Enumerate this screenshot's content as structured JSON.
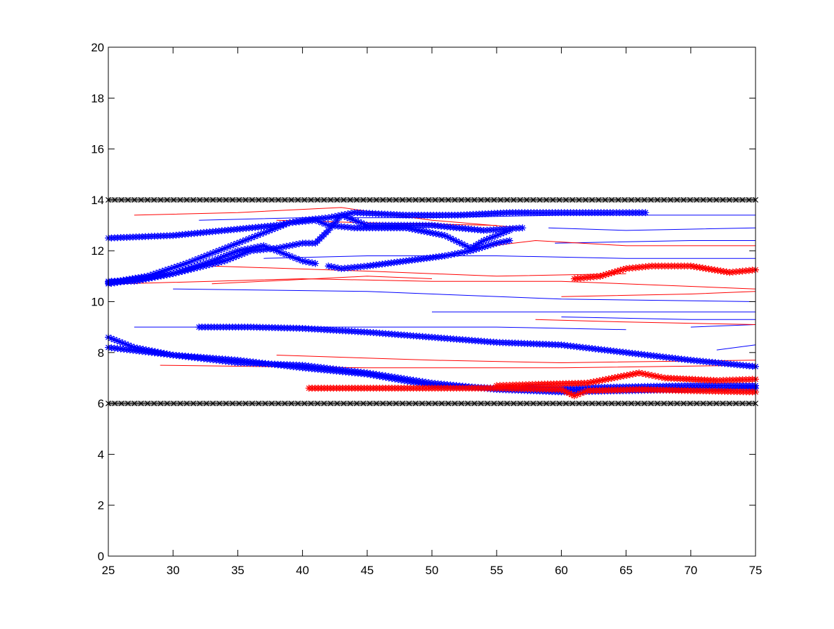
{
  "chart_data": {
    "type": "line",
    "title": "",
    "xlabel": "",
    "ylabel": "",
    "xlim": [
      25,
      75
    ],
    "ylim": [
      0,
      20
    ],
    "xticks": [
      "25",
      "30",
      "35",
      "40",
      "45",
      "50",
      "55",
      "60",
      "65",
      "70",
      "75"
    ],
    "yticks": [
      "0",
      "2",
      "4",
      "6",
      "8",
      "10",
      "12",
      "14",
      "16",
      "18",
      "20"
    ],
    "grid": false,
    "legend": "none",
    "colors": {
      "blue": "#0000ff",
      "red": "#ff0000",
      "boundary": "#000000",
      "boundary_fill": "#9a9a9a"
    },
    "boundaries": [
      {
        "y": 14,
        "x_start": 25,
        "x_end": 75,
        "marker": "x"
      },
      {
        "y": 6,
        "x_start": 25,
        "x_end": 75,
        "marker": "x"
      }
    ],
    "series": [
      {
        "color": "blue",
        "marker": "*",
        "points": [
          [
            25,
            12.5
          ],
          [
            30,
            12.6
          ],
          [
            34,
            12.8
          ],
          [
            38,
            13.0
          ],
          [
            40,
            13.2
          ],
          [
            42,
            13.3
          ],
          [
            44,
            13.5
          ],
          [
            48,
            13.4
          ],
          [
            52,
            13.4
          ],
          [
            56,
            13.5
          ],
          [
            60,
            13.5
          ],
          [
            64,
            13.5
          ],
          [
            66.5,
            13.5
          ]
        ]
      },
      {
        "color": "blue",
        "marker": "*",
        "points": [
          [
            25,
            10.8
          ],
          [
            27,
            10.8
          ],
          [
            30,
            11.1
          ],
          [
            33,
            11.6
          ],
          [
            35,
            12.0
          ],
          [
            37,
            12.2
          ],
          [
            38,
            12.0
          ],
          [
            39,
            11.8
          ],
          [
            40,
            11.6
          ],
          [
            41,
            11.5
          ]
        ]
      },
      {
        "color": "blue",
        "marker": "*",
        "points": [
          [
            25,
            10.75
          ],
          [
            28,
            11.0
          ],
          [
            31,
            11.5
          ],
          [
            34,
            12.1
          ],
          [
            37,
            12.7
          ],
          [
            39,
            13.1
          ],
          [
            41,
            13.2
          ],
          [
            42,
            13.0
          ],
          [
            44,
            12.9
          ],
          [
            48,
            12.9
          ],
          [
            51,
            12.6
          ],
          [
            53,
            12.1
          ],
          [
            54,
            12.4
          ],
          [
            56,
            12.8
          ]
        ]
      },
      {
        "color": "blue",
        "marker": "*",
        "points": [
          [
            25,
            10.7
          ],
          [
            30,
            11.1
          ],
          [
            34,
            11.6
          ],
          [
            36,
            12.0
          ],
          [
            38,
            12.1
          ],
          [
            40,
            12.3
          ],
          [
            41,
            12.3
          ],
          [
            42,
            12.8
          ],
          [
            43,
            13.4
          ],
          [
            45,
            13.0
          ],
          [
            50,
            13.0
          ],
          [
            54,
            12.8
          ],
          [
            57,
            12.9
          ]
        ]
      },
      {
        "color": "blue",
        "marker": "*",
        "points": [
          [
            42,
            11.4
          ],
          [
            43,
            11.3
          ],
          [
            45,
            11.4
          ],
          [
            48,
            11.6
          ],
          [
            51,
            11.8
          ],
          [
            53,
            12.0
          ],
          [
            55,
            12.3
          ],
          [
            56,
            12.4
          ]
        ]
      },
      {
        "color": "blue",
        "marker": "*",
        "points": [
          [
            32,
            9.0
          ],
          [
            36,
            9.0
          ],
          [
            40,
            8.95
          ],
          [
            45,
            8.8
          ],
          [
            50,
            8.6
          ],
          [
            55,
            8.4
          ],
          [
            60,
            8.3
          ],
          [
            65,
            8.0
          ],
          [
            70,
            7.7
          ],
          [
            75,
            7.45
          ]
        ]
      },
      {
        "color": "blue",
        "marker": "*",
        "points": [
          [
            25,
            8.6
          ],
          [
            27,
            8.2
          ],
          [
            30,
            7.9
          ],
          [
            35,
            7.7
          ],
          [
            40,
            7.4
          ],
          [
            45,
            7.15
          ],
          [
            50,
            6.7
          ],
          [
            55,
            6.6
          ],
          [
            60,
            6.6
          ],
          [
            65,
            6.65
          ],
          [
            70,
            6.7
          ],
          [
            75,
            6.7
          ]
        ]
      },
      {
        "color": "blue",
        "marker": "*",
        "points": [
          [
            25,
            8.2
          ],
          [
            30,
            7.9
          ],
          [
            35,
            7.6
          ],
          [
            40,
            7.5
          ],
          [
            45,
            7.2
          ],
          [
            50,
            6.8
          ],
          [
            55,
            6.55
          ],
          [
            60,
            6.45
          ],
          [
            65,
            6.5
          ],
          [
            70,
            6.55
          ],
          [
            75,
            6.6
          ]
        ]
      },
      {
        "color": "red",
        "marker": "*",
        "points": [
          [
            61,
            10.9
          ],
          [
            63,
            11.0
          ],
          [
            65,
            11.3
          ],
          [
            67,
            11.4
          ],
          [
            70,
            11.4
          ],
          [
            73,
            11.15
          ],
          [
            75,
            11.25
          ]
        ]
      },
      {
        "color": "red",
        "marker": "*",
        "points": [
          [
            55,
            6.7
          ],
          [
            58,
            6.75
          ],
          [
            62,
            6.8
          ],
          [
            66,
            7.2
          ],
          [
            68,
            7.0
          ],
          [
            72,
            6.9
          ],
          [
            75,
            6.95
          ]
        ]
      },
      {
        "color": "red",
        "marker": "*",
        "points": [
          [
            40.5,
            6.6
          ],
          [
            45,
            6.6
          ],
          [
            50,
            6.6
          ],
          [
            55,
            6.6
          ],
          [
            60,
            6.55
          ],
          [
            61,
            6.3
          ],
          [
            62,
            6.5
          ],
          [
            66,
            6.55
          ],
          [
            70,
            6.5
          ],
          [
            75,
            6.45
          ]
        ]
      },
      {
        "color": "blue",
        "marker": "",
        "points": [
          [
            32,
            13.2
          ],
          [
            40,
            13.3
          ],
          [
            50,
            13.3
          ],
          [
            60,
            13.4
          ],
          [
            75,
            13.4
          ]
        ]
      },
      {
        "color": "blue",
        "marker": "",
        "points": [
          [
            59,
            12.9
          ],
          [
            65,
            12.8
          ],
          [
            75,
            12.9
          ]
        ]
      },
      {
        "color": "blue",
        "marker": "",
        "points": [
          [
            59.5,
            12.3
          ],
          [
            70,
            12.4
          ],
          [
            75,
            12.4
          ]
        ]
      },
      {
        "color": "blue",
        "marker": "",
        "points": [
          [
            37,
            11.7
          ],
          [
            45,
            11.8
          ],
          [
            55,
            11.8
          ],
          [
            65,
            11.7
          ],
          [
            75,
            11.7
          ]
        ]
      },
      {
        "color": "blue",
        "marker": "",
        "points": [
          [
            30,
            10.5
          ],
          [
            45,
            10.4
          ],
          [
            60,
            10.1
          ],
          [
            75,
            10.0
          ]
        ]
      },
      {
        "color": "blue",
        "marker": "",
        "points": [
          [
            50,
            9.6
          ],
          [
            60,
            9.6
          ],
          [
            75,
            9.6
          ]
        ]
      },
      {
        "color": "blue",
        "marker": "",
        "points": [
          [
            27,
            9.0
          ],
          [
            40,
            9.0
          ],
          [
            55,
            9.0
          ],
          [
            65,
            8.9
          ]
        ]
      },
      {
        "color": "blue",
        "marker": "",
        "points": [
          [
            60,
            9.4
          ],
          [
            70,
            9.3
          ],
          [
            75,
            9.3
          ]
        ]
      },
      {
        "color": "blue",
        "marker": "",
        "points": [
          [
            70,
            9.0
          ],
          [
            75,
            9.1
          ]
        ]
      },
      {
        "color": "blue",
        "marker": "",
        "points": [
          [
            72,
            8.1
          ],
          [
            75,
            8.3
          ]
        ]
      },
      {
        "color": "red",
        "marker": "",
        "points": [
          [
            27,
            13.4
          ],
          [
            35,
            13.5
          ],
          [
            43,
            13.7
          ],
          [
            50,
            13.2
          ],
          [
            57,
            12.9
          ]
        ]
      },
      {
        "color": "red",
        "marker": "",
        "points": [
          [
            38,
            13.2
          ],
          [
            45,
            13.1
          ],
          [
            55,
            13.0
          ]
        ]
      },
      {
        "color": "red",
        "marker": "",
        "points": [
          [
            53,
            12.1
          ],
          [
            58,
            12.4
          ],
          [
            65,
            12.2
          ],
          [
            75,
            12.2
          ]
        ]
      },
      {
        "color": "red",
        "marker": "",
        "points": [
          [
            33,
            11.4
          ],
          [
            45,
            11.2
          ],
          [
            55,
            11.0
          ],
          [
            65,
            11.1
          ]
        ]
      },
      {
        "color": "red",
        "marker": "",
        "points": [
          [
            26,
            10.7
          ],
          [
            40,
            10.9
          ],
          [
            50,
            10.8
          ],
          [
            60,
            10.8
          ],
          [
            70,
            10.6
          ],
          [
            75,
            10.5
          ]
        ]
      },
      {
        "color": "red",
        "marker": "",
        "points": [
          [
            33,
            10.7
          ],
          [
            45,
            11.0
          ],
          [
            50,
            10.9
          ]
        ]
      },
      {
        "color": "red",
        "marker": "",
        "points": [
          [
            60,
            10.2
          ],
          [
            70,
            10.3
          ],
          [
            75,
            10.4
          ]
        ]
      },
      {
        "color": "red",
        "marker": "",
        "points": [
          [
            58,
            9.3
          ],
          [
            65,
            9.2
          ],
          [
            75,
            9.1
          ]
        ]
      },
      {
        "color": "red",
        "marker": "",
        "points": [
          [
            38,
            7.9
          ],
          [
            50,
            7.7
          ],
          [
            60,
            7.6
          ],
          [
            75,
            7.7
          ]
        ]
      },
      {
        "color": "red",
        "marker": "",
        "points": [
          [
            29,
            7.5
          ],
          [
            45,
            7.4
          ],
          [
            60,
            7.4
          ],
          [
            75,
            7.5
          ]
        ]
      }
    ]
  }
}
